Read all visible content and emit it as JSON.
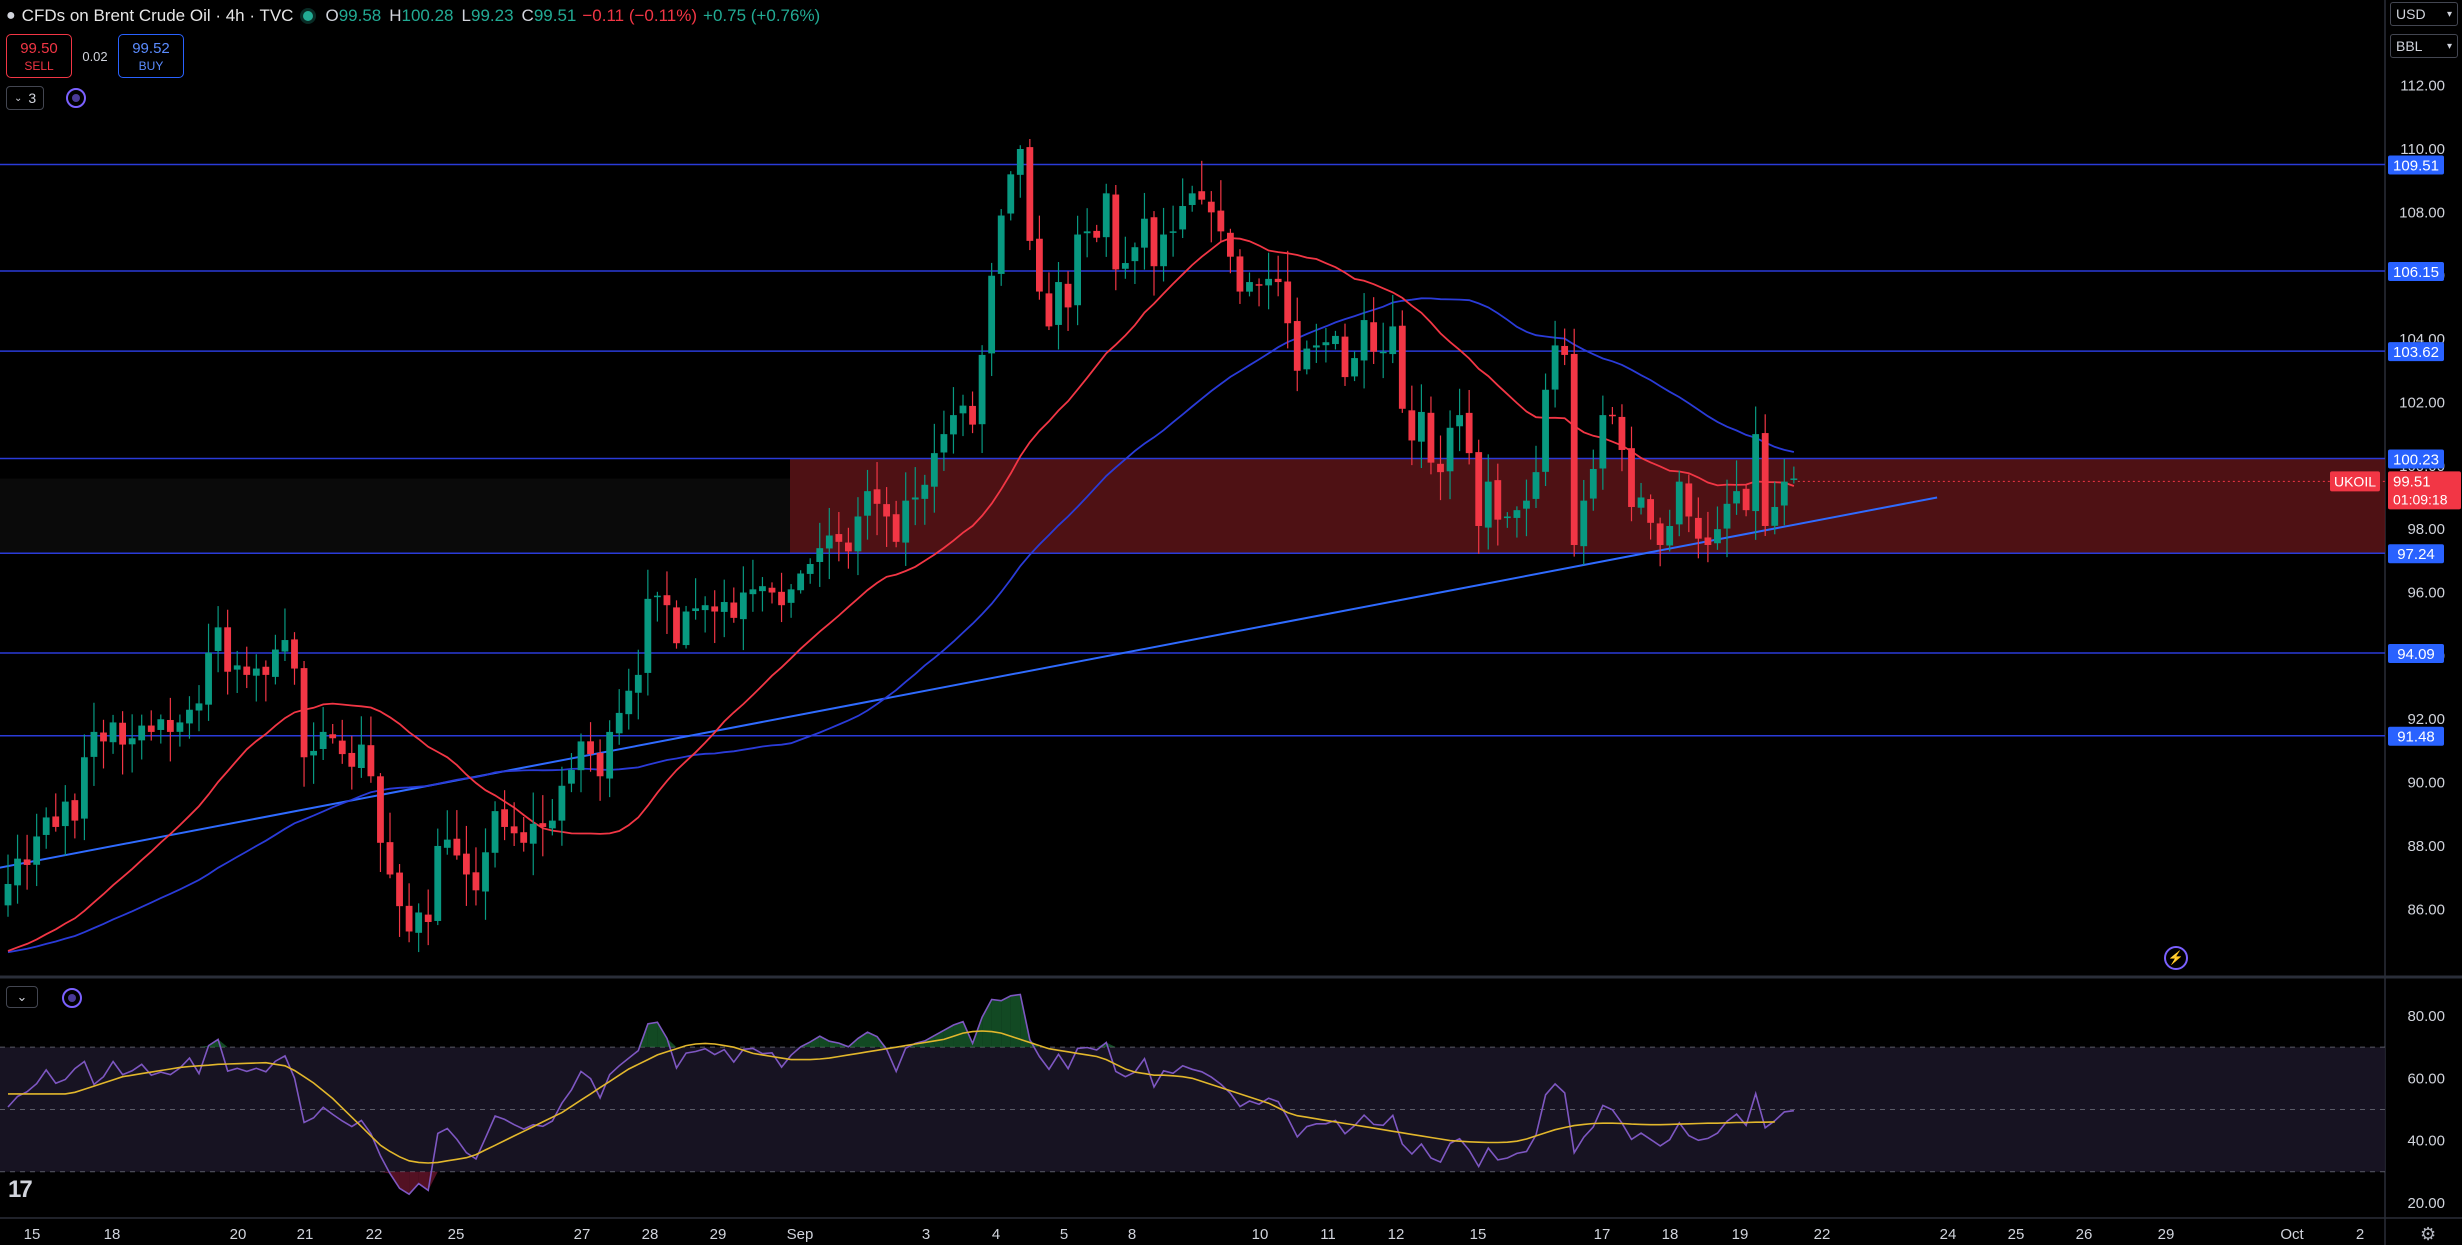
{
  "header": {
    "title": "CFDs on Brent Crude Oil · 4h · TVC",
    "open_label": "O",
    "open": "99.58",
    "high_label": "H",
    "high": "100.28",
    "low_label": "L",
    "low": "99.23",
    "close_label": "C",
    "close": "99.51",
    "change": "−0.11 (−0.11%)",
    "change2": "+0.75 (+0.76%)"
  },
  "trade": {
    "sell_price": "99.50",
    "sell_label": "SELL",
    "spread": "0.02",
    "buy_price": "99.52",
    "buy_label": "BUY"
  },
  "indicators_collapse": "3",
  "units": {
    "currency": "USD",
    "unit": "BBL"
  },
  "colors": {
    "up": "#089981",
    "down": "#f23645",
    "sma_red": "#f23645",
    "sma_blue": "#2a3bd8",
    "level_line": "#2a3bd8",
    "level_box": "#2962ff",
    "zone": "#5c1418",
    "trendline": "#2f6bff",
    "rsi": "#7e57c2",
    "rsi_ma": "#e2b72c"
  },
  "chart_data": [
    {
      "type": "candlestick",
      "symbol": "UKOIL",
      "timeframe": "4h",
      "y_ticks": [
        "112.00",
        "110.00",
        "108.00",
        "106.00",
        "104.00",
        "102.00",
        "100.00",
        "98.00",
        "96.00",
        "94.00",
        "92.00",
        "90.00",
        "88.00",
        "86.00"
      ],
      "ylim": [
        84.8,
        112.5
      ],
      "x_labels": [
        "15",
        "18",
        "20",
        "21",
        "22",
        "25",
        "27",
        "28",
        "29",
        "Sep",
        "3",
        "4",
        "5",
        "8",
        "10",
        "11",
        "12",
        "15",
        "17",
        "18",
        "19",
        "22",
        "24",
        "25",
        "26",
        "29",
        "Oct",
        "2"
      ],
      "horizontal_levels": [
        "109.51",
        "106.15",
        "103.62",
        "100.23",
        "97.24",
        "94.09",
        "91.48"
      ],
      "zone": {
        "from": 97.24,
        "to": 100.23
      },
      "trendline": {
        "from": {
          "x": "23",
          "y": 84.6
        },
        "to": {
          "x": "29",
          "y": 99.0
        }
      },
      "last_price_label": {
        "symbol": "UKOIL",
        "price": "99.51",
        "countdown": "01:09:18"
      },
      "closes": [
        86.8,
        87.6,
        87.4,
        88.3,
        88.9,
        88.6,
        89.4,
        88.8,
        90.8,
        91.6,
        91.3,
        91.9,
        91.2,
        91.4,
        91.8,
        91.6,
        92.0,
        91.6,
        91.9,
        92.3,
        92.5,
        94.1,
        94.9,
        93.5,
        93.7,
        93.4,
        93.6,
        93.4,
        94.2,
        94.5,
        93.6,
        90.8,
        91.0,
        91.6,
        91.4,
        90.9,
        90.5,
        91.2,
        90.2,
        88.1,
        87.1,
        86.1,
        85.3,
        85.9,
        85.6,
        88.0,
        88.2,
        87.7,
        87.1,
        86.6,
        87.8,
        89.1,
        88.6,
        88.4,
        88.1,
        88.7,
        88.6,
        88.8,
        89.9,
        90.4,
        91.3,
        90.9,
        90.2,
        91.6,
        92.2,
        92.9,
        93.4,
        95.8,
        95.9,
        95.6,
        94.4,
        95.4,
        95.5,
        95.6,
        95.4,
        95.7,
        95.2,
        96.0,
        96.1,
        96.2,
        96.0,
        95.6,
        96.1,
        96.6,
        96.9,
        97.4,
        97.8,
        97.6,
        97.3,
        98.4,
        99.2,
        98.8,
        98.4,
        97.6,
        98.9,
        99.0,
        99.4,
        100.4,
        101.0,
        101.6,
        101.9,
        101.3,
        103.5,
        106.0,
        107.9,
        109.2,
        110.0,
        107.1,
        105.5,
        104.4,
        105.8,
        105.0,
        107.3,
        107.4,
        107.2,
        108.6,
        106.2,
        106.4,
        106.9,
        107.8,
        106.3,
        107.3,
        107.4,
        108.2,
        108.6,
        108.4,
        108.0,
        107.4,
        106.6,
        105.5,
        105.8,
        105.7,
        105.9,
        105.8,
        104.5,
        103.0,
        103.7,
        103.8,
        103.9,
        104.1,
        102.8,
        103.4,
        104.6,
        103.6,
        103.6,
        104.4,
        101.8,
        100.8,
        101.7,
        100.1,
        99.8,
        101.2,
        101.6,
        100.4,
        98.1,
        99.5,
        98.3,
        98.4,
        98.6,
        98.9,
        99.8,
        102.4,
        103.8,
        103.5,
        97.5,
        98.9,
        99.9,
        101.6,
        101.6,
        100.5,
        98.7,
        99.0,
        98.2,
        97.5,
        98.1,
        99.5,
        98.4,
        97.7,
        97.5,
        98.0,
        98.8,
        99.2,
        98.6,
        101.0,
        98.1,
        98.7,
        99.5,
        99.6
      ]
    },
    {
      "type": "line",
      "title": "RSI",
      "y_ticks": [
        "80.00",
        "60.00",
        "40.00",
        "20.00"
      ],
      "ylim": [
        17,
        87
      ],
      "bands": {
        "upper": 70,
        "middle": 50,
        "lower": 30
      },
      "series": [
        {
          "key": "rsi",
          "values": [
            50.8,
            54.2,
            55.7,
            58.3,
            62.7,
            58.4,
            59.6,
            63.1,
            65.4,
            58.0,
            60.5,
            65.4,
            61.2,
            62.4,
            64.5,
            61.0,
            62.0,
            61.2,
            63.3,
            66.5,
            61.5,
            70.5,
            72.5,
            62.3,
            63.2,
            62.2,
            63.2,
            62.1,
            65.5,
            67.2,
            60.1,
            45.8,
            47.3,
            50.7,
            48.4,
            46.3,
            44.5,
            46.5,
            42.2,
            35.1,
            29.4,
            24.7,
            22.8,
            26.2,
            24.0,
            42.3,
            43.9,
            40.4,
            36.1,
            34.1,
            40.9,
            47.9,
            46.8,
            45.1,
            43.7,
            45.1,
            44.6,
            46.3,
            52.0,
            56.3,
            62.2,
            59.9,
            53.7,
            61.2,
            64.0,
            66.5,
            68.9,
            77.5,
            78.0,
            72.8,
            63.3,
            68.1,
            68.6,
            69.5,
            67.6,
            69.2,
            65.2,
            69.3,
            69.6,
            67.9,
            68.2,
            63.6,
            67.4,
            70.1,
            71.7,
            73.5,
            71.9,
            71.3,
            70.1,
            72.8,
            74.8,
            73.4,
            69.3,
            62.2,
            69.7,
            71.2,
            72.0,
            73.7,
            75.4,
            77.1,
            78.2,
            71.2,
            79.6,
            85.3,
            84.9,
            86.5,
            86.9,
            72.4,
            67.0,
            62.9,
            67.7,
            63.1,
            69.6,
            69.9,
            69.1,
            71.5,
            62.2,
            60.5,
            62.0,
            66.3,
            57.2,
            62.4,
            61.6,
            64.0,
            62.9,
            62.1,
            60.4,
            58.1,
            55.2,
            50.9,
            52.7,
            51.7,
            53.6,
            52.5,
            47.3,
            41.2,
            44.5,
            45.4,
            45.4,
            46.5,
            42.2,
            44.8,
            48.2,
            45.2,
            44.9,
            48.1,
            38.9,
            35.7,
            38.9,
            34.4,
            33.1,
            39.1,
            40.6,
            36.9,
            31.7,
            37.6,
            33.8,
            34.4,
            35.9,
            36.5,
            41.8,
            54.7,
            58.2,
            55.3,
            36.1,
            41.1,
            44.4,
            51.3,
            49.9,
            45.6,
            40.4,
            42.4,
            40.4,
            38.3,
            40.3,
            45.7,
            41.6,
            40.1,
            40.7,
            42.4,
            46.2,
            48.5,
            44.9,
            55.1,
            44.1,
            46.4,
            49.2,
            49.6
          ]
        },
        {
          "key": "rsi_ma",
          "values": [
            55.0,
            55.0,
            55.0,
            55.0,
            55.0,
            55.0,
            55.0,
            55.5,
            56.5,
            57.5,
            58.5,
            59.5,
            60.5,
            61.0,
            61.5,
            62.0,
            62.5,
            63.0,
            63.5,
            63.8,
            64.0,
            64.2,
            64.5,
            64.6,
            64.7,
            64.8,
            64.9,
            65.0,
            64.5,
            64.0,
            62.5,
            60.5,
            58.5,
            56.0,
            53.5,
            50.5,
            47.5,
            44.5,
            41.5,
            38.5,
            36.5,
            34.8,
            33.5,
            33.0,
            32.8,
            33.0,
            33.5,
            34.0,
            34.5,
            35.5,
            37.0,
            38.5,
            40.0,
            41.5,
            43.0,
            44.5,
            46.0,
            47.5,
            49.0,
            51.0,
            53.0,
            55.0,
            57.0,
            59.0,
            61.0,
            63.0,
            64.5,
            66.0,
            67.5,
            68.5,
            69.5,
            70.5,
            71.0,
            71.2,
            71.0,
            70.5,
            70.0,
            69.0,
            68.0,
            67.5,
            67.0,
            66.5,
            66.0,
            66.0,
            66.0,
            66.2,
            66.5,
            67.0,
            67.5,
            68.0,
            68.5,
            69.0,
            69.5,
            70.0,
            70.5,
            71.0,
            71.5,
            72.0,
            72.5,
            73.5,
            74.5,
            75.0,
            75.2,
            75.0,
            74.5,
            73.5,
            72.5,
            71.5,
            70.5,
            69.5,
            69.0,
            68.5,
            68.0,
            67.5,
            67.0,
            66.0,
            64.5,
            63.0,
            62.0,
            61.5,
            61.0,
            61.0,
            60.8,
            60.5,
            60.0,
            59.0,
            58.0,
            57.0,
            56.0,
            55.0,
            54.0,
            53.0,
            52.0,
            50.5,
            49.0,
            48.0,
            47.5,
            47.0,
            46.5,
            46.0,
            45.5,
            45.0,
            44.5,
            44.0,
            43.5,
            43.0,
            42.5,
            42.0,
            41.5,
            41.0,
            40.5,
            40.0,
            39.8,
            39.6,
            39.5,
            39.4,
            39.4,
            39.5,
            39.8,
            40.5,
            41.5,
            42.5,
            43.5,
            44.2,
            44.8,
            45.2,
            45.5,
            45.6,
            45.6,
            45.5,
            45.3,
            45.2,
            45.1,
            45.1,
            45.2,
            45.3,
            45.4,
            45.5,
            45.6,
            45.6,
            45.7,
            45.8,
            45.8,
            45.9,
            45.9,
            46.0
          ]
        }
      ]
    }
  ]
}
